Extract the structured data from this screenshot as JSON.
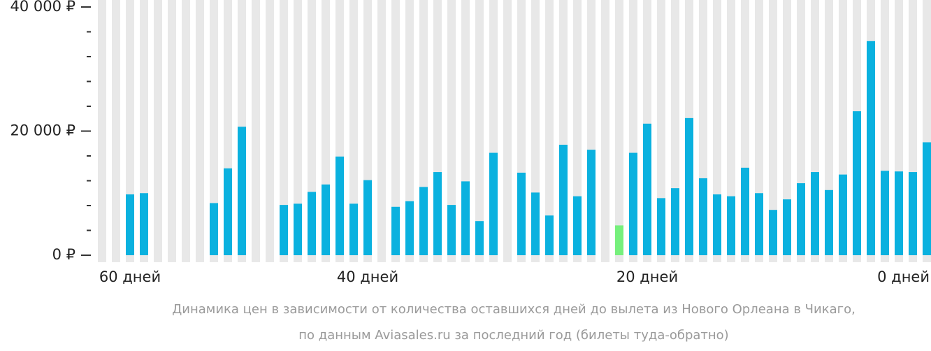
{
  "chart_data": {
    "type": "bar",
    "categories": [
      null,
      null,
      "60 дней",
      null,
      null,
      null,
      null,
      null,
      null,
      null,
      null,
      null,
      null,
      null,
      null,
      null,
      null,
      null,
      null,
      "40 дней",
      null,
      null,
      null,
      null,
      null,
      null,
      null,
      null,
      null,
      null,
      null,
      null,
      null,
      null,
      null,
      null,
      null,
      null,
      null,
      "20 дней",
      null,
      null,
      null,
      null,
      null,
      null,
      null,
      null,
      null,
      null,
      null,
      null,
      null,
      null,
      null,
      null,
      null,
      null,
      null,
      "0 дней"
    ],
    "values": [
      null,
      null,
      9800,
      10000,
      null,
      null,
      null,
      null,
      8400,
      14000,
      20700,
      null,
      null,
      8100,
      8300,
      10200,
      11400,
      15900,
      8300,
      12100,
      null,
      7800,
      8700,
      11000,
      13400,
      8100,
      11900,
      5500,
      16500,
      null,
      13300,
      10100,
      6400,
      17800,
      9500,
      17000,
      null,
      4800,
      16500,
      21200,
      9200,
      10800,
      22100,
      12400,
      9800,
      9500,
      14100,
      10000,
      7300,
      9000,
      11600,
      13400,
      10500,
      13000,
      23200,
      34500,
      13600,
      13500,
      13400,
      18200
    ],
    "color": "#0ab1df",
    "highlight": {
      "index": 37,
      "color": "#76f07c"
    },
    "ylim": [
      0,
      40000
    ],
    "yticks": [
      {
        "value": 0,
        "label": "0 ₽"
      },
      {
        "value": 20000,
        "label": "20 000 ₽"
      },
      {
        "value": 40000,
        "label": "40 000 ₽"
      }
    ],
    "yticks_minor": [
      4000,
      8000,
      12000,
      16000,
      24000,
      28000,
      32000,
      36000
    ],
    "caption": [
      "Динамика цен в зависимости от количества оставшихся дней до вылета из Нового Орлеана в Чикаго,",
      "по данным Aviasales.ru за последний год (билеты туда-обратно)"
    ]
  }
}
